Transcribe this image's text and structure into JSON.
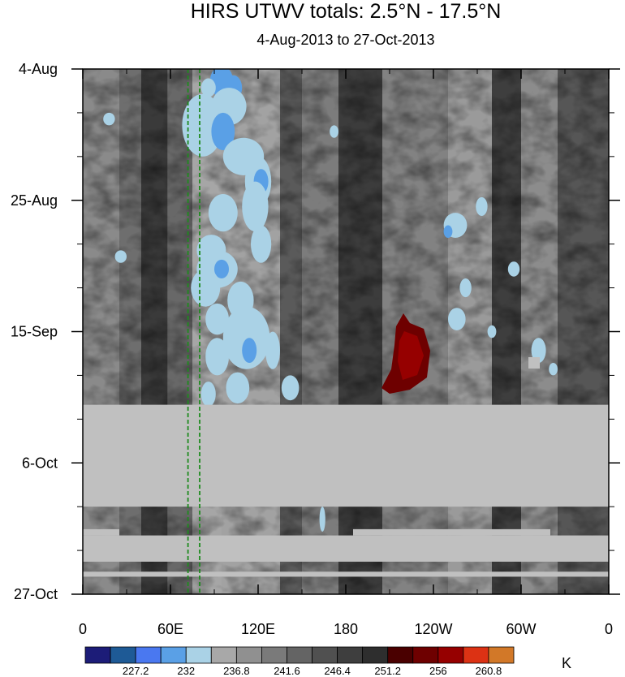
{
  "chart_data": {
    "type": "heatmap",
    "title": "HIRS UTWV totals: 2.5°N - 17.5°N",
    "subtitle": "4-Aug-2013 to 27-Oct-2013",
    "x_ticks": [
      "0",
      "60E",
      "120E",
      "180",
      "120W",
      "60W",
      "0"
    ],
    "y_ticks": [
      "4-Aug",
      "25-Aug",
      "15-Sep",
      "6-Oct",
      "27-Oct"
    ],
    "xlim": [
      0,
      360
    ],
    "ylim": [
      "4-Aug-2013",
      "27-Oct-2013"
    ],
    "colorbar": {
      "unit": "K",
      "colors": [
        "#1c1c78",
        "#1e5a96",
        "#4a78f0",
        "#5aa0e6",
        "#aad2e6",
        "#a8a8a8",
        "#909090",
        "#7a7a7a",
        "#646464",
        "#505050",
        "#3e3e3e",
        "#2e2e2e",
        "#4a0000",
        "#6e0000",
        "#960000",
        "#dc3214",
        "#d27828"
      ],
      "labels": [
        "227.2",
        "232",
        "236.8",
        "241.6",
        "246.4",
        "251.2",
        "256",
        "260.8"
      ]
    },
    "missing_data": "gray band from about 27-Sep to 16-Oct",
    "reference_lines": [
      72,
      80
    ]
  }
}
